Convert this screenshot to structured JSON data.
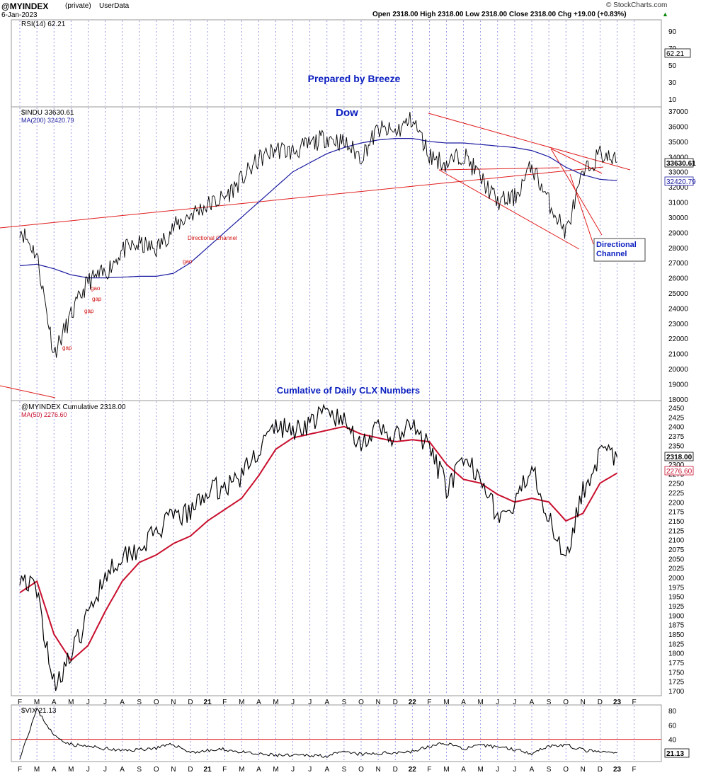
{
  "header": {
    "symbol": "@MYINDEX",
    "private": "(private)",
    "userdata": "UserData",
    "date": "6-Jan-2023",
    "ohlc": "Open 2318.00  High 2318.00  Low 2318.00  Close 2318.00  Chg +19.00 (+0.83%)",
    "ohlc_arrow": "▲",
    "watermark": "© StockCharts.com"
  },
  "colors": {
    "price": "#000000",
    "ma": "#1a1aa0",
    "ma50": "#c8102e",
    "trendline": "#e11d1d",
    "annotation_blue": "#0b1fbf",
    "gap_label": "#d01010",
    "month_grid": "#4a4ad0"
  },
  "months_axis": [
    "F",
    "M",
    "A",
    "M",
    "J",
    "J",
    "A",
    "S",
    "O",
    "N",
    "D",
    "21",
    "F",
    "M",
    "A",
    "M",
    "J",
    "J",
    "A",
    "S",
    "O",
    "N",
    "D",
    "22",
    "F",
    "M",
    "A",
    "M",
    "J",
    "J",
    "A",
    "S",
    "O",
    "N",
    "D",
    "23",
    "F"
  ],
  "chart_data": [
    {
      "type": "line",
      "title": "RSI(14) 62.21",
      "series": [
        {
          "name": "RSI(14)",
          "last": 62.21
        }
      ],
      "yticks": [
        10,
        30,
        50,
        70,
        90
      ],
      "last_value_label": "62.21"
    },
    {
      "type": "line",
      "title": "$INDU 33630.61",
      "subtitle": "MA(200) 32420.79",
      "ylim": [
        18000,
        37000
      ],
      "yticks": [
        18000,
        19000,
        20000,
        21000,
        22000,
        23000,
        24000,
        25000,
        26000,
        27000,
        28000,
        29000,
        30000,
        31000,
        32000,
        33000,
        34000,
        35000,
        36000,
        37000
      ],
      "x": [
        "2020-02",
        "2020-03",
        "2020-04",
        "2020-05",
        "2020-06",
        "2020-07",
        "2020-08",
        "2020-09",
        "2020-10",
        "2020-11",
        "2020-12",
        "2021-01",
        "2021-02",
        "2021-03",
        "2021-04",
        "2021-05",
        "2021-06",
        "2021-07",
        "2021-08",
        "2021-09",
        "2021-10",
        "2021-11",
        "2021-12",
        "2022-01",
        "2022-02",
        "2022-03",
        "2022-04",
        "2022-05",
        "2022-06",
        "2022-07",
        "2022-08",
        "2022-09",
        "2022-10",
        "2022-11",
        "2022-12",
        "2023-01"
      ],
      "series": [
        {
          "name": "$INDU",
          "values": [
            29300,
            27500,
            21000,
            23500,
            25800,
            26300,
            27800,
            28200,
            27900,
            29300,
            30200,
            30800,
            31300,
            32500,
            33800,
            34500,
            34300,
            34800,
            35300,
            34900,
            34000,
            35800,
            35600,
            36500,
            34100,
            33500,
            34200,
            32600,
            31000,
            31300,
            33400,
            31000,
            29000,
            32800,
            34200,
            33630.61
          ]
        },
        {
          "name": "MA(200)",
          "values": [
            26800,
            26900,
            26600,
            26200,
            26000,
            26000,
            26050,
            26100,
            26100,
            26300,
            27000,
            28000,
            29000,
            30000,
            31000,
            32000,
            33000,
            33600,
            34200,
            34600,
            34900,
            35100,
            35200,
            35200,
            35000,
            34900,
            34900,
            34800,
            34700,
            34600,
            34400,
            34000,
            33300,
            32800,
            32500,
            32420.79
          ]
        }
      ],
      "annotations": [
        "Dow",
        "Prepared by Breeze",
        "Directional Channel",
        "gap",
        "gap",
        "gap",
        "gao",
        "gap",
        "gap"
      ],
      "last_value_labels": [
        "33630.61",
        "32420.79"
      ]
    },
    {
      "type": "line",
      "title": "@MYINDEX Cumulative 2318.00",
      "subtitle": "MA(50) 2276.60",
      "heading": "Cumlative of Daily CLX Numbers",
      "ylim": [
        1700,
        2450
      ],
      "yticks": [
        1700,
        1725,
        1750,
        1775,
        1800,
        1825,
        1850,
        1875,
        1900,
        1925,
        1950,
        1975,
        2000,
        2025,
        2050,
        2075,
        2100,
        2125,
        2150,
        2175,
        2200,
        2225,
        2250,
        2275,
        2300,
        2325,
        2350,
        2375,
        2400,
        2425,
        2450
      ],
      "x": [
        "2020-02",
        "2020-03",
        "2020-04",
        "2020-05",
        "2020-06",
        "2020-07",
        "2020-08",
        "2020-09",
        "2020-10",
        "2020-11",
        "2020-12",
        "2021-01",
        "2021-02",
        "2021-03",
        "2021-04",
        "2021-05",
        "2021-06",
        "2021-07",
        "2021-08",
        "2021-09",
        "2021-10",
        "2021-11",
        "2021-12",
        "2022-01",
        "2022-02",
        "2022-03",
        "2022-04",
        "2022-05",
        "2022-06",
        "2022-07",
        "2022-08",
        "2022-09",
        "2022-10",
        "2022-11",
        "2022-12",
        "2023-01"
      ],
      "series": [
        {
          "name": "@MYINDEX Cumulative",
          "values": [
            2010,
            1960,
            1720,
            1790,
            1900,
            2010,
            2060,
            2080,
            2120,
            2160,
            2170,
            2230,
            2240,
            2270,
            2340,
            2400,
            2390,
            2410,
            2440,
            2410,
            2360,
            2390,
            2370,
            2400,
            2340,
            2240,
            2300,
            2280,
            2160,
            2180,
            2310,
            2150,
            2060,
            2230,
            2330,
            2318
          ]
        },
        {
          "name": "MA(50)",
          "values": [
            1960,
            1990,
            1850,
            1780,
            1820,
            1910,
            1990,
            2040,
            2060,
            2090,
            2110,
            2150,
            2180,
            2210,
            2270,
            2340,
            2370,
            2380,
            2390,
            2400,
            2380,
            2370,
            2360,
            2365,
            2360,
            2300,
            2260,
            2250,
            2220,
            2200,
            2210,
            2200,
            2150,
            2170,
            2250,
            2276.6
          ]
        }
      ],
      "last_value_labels": [
        "2318.00",
        "2276.60"
      ]
    },
    {
      "type": "line",
      "title": "$VIX 21.13",
      "ylim": [
        15,
        85
      ],
      "yticks": [
        20,
        40,
        60,
        80
      ],
      "reference_line": 40,
      "series": [
        {
          "name": "$VIX",
          "values": [
            15,
            82,
            45,
            33,
            30,
            27,
            24,
            26,
            28,
            33,
            22,
            24,
            26,
            22,
            19,
            18,
            17,
            18,
            17,
            22,
            19,
            20,
            22,
            23,
            30,
            35,
            27,
            31,
            30,
            26,
            21,
            31,
            32,
            25,
            22,
            21.13
          ]
        }
      ],
      "last_value_label": "21.13"
    }
  ]
}
